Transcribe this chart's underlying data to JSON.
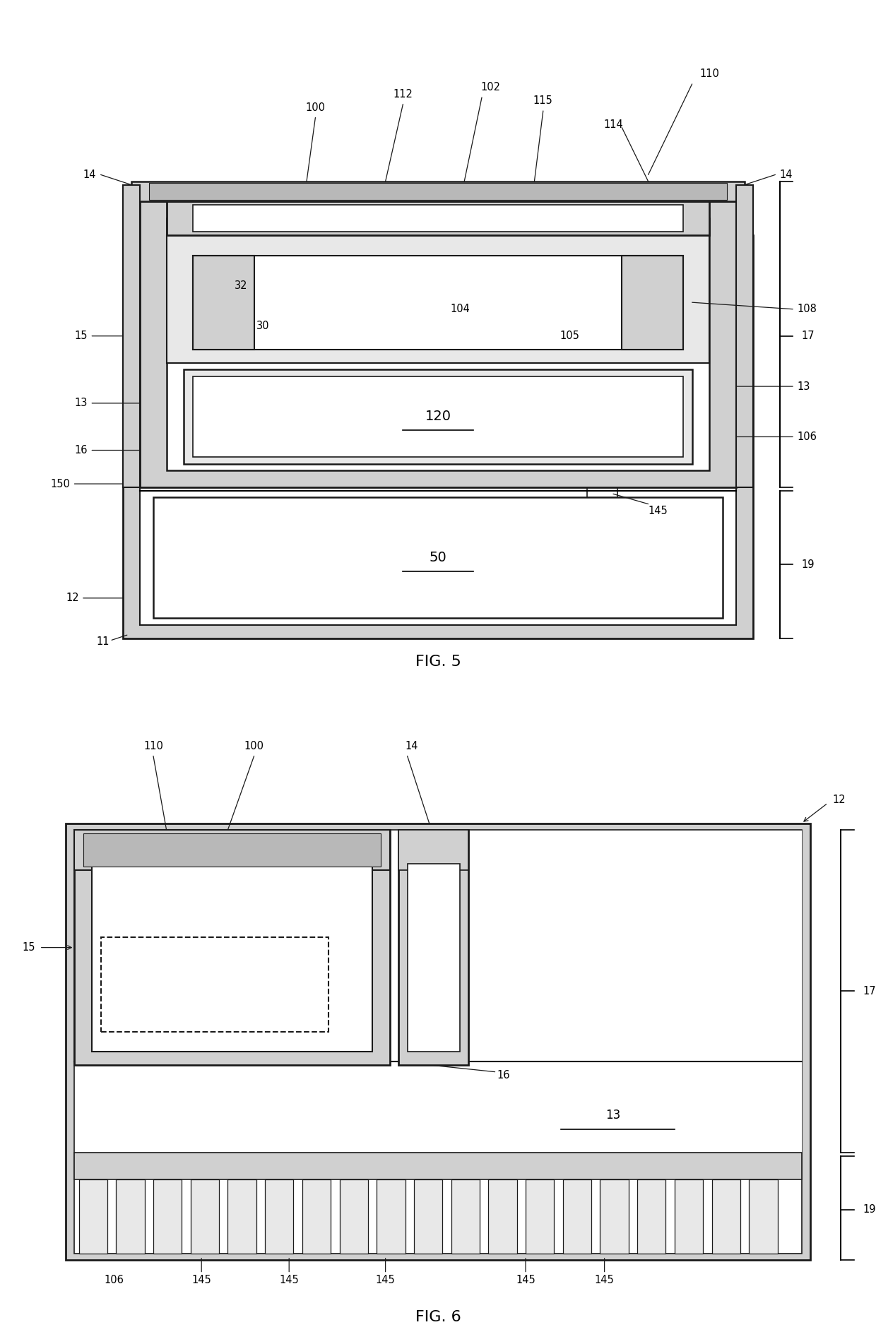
{
  "bg_color": "#ffffff",
  "lc": "#1a1a1a",
  "gray1": "#d0d0d0",
  "gray2": "#b8b8b8",
  "gray3": "#e8e8e8"
}
